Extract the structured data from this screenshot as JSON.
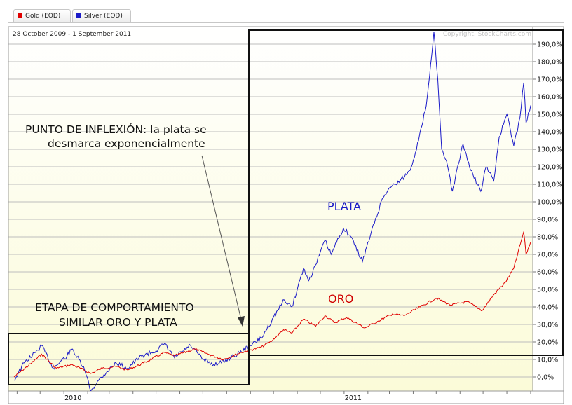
{
  "legend": [
    {
      "label": "Gold (EOD)",
      "color": "#e00000"
    },
    {
      "label": "Silver (EOD)",
      "color": "#1a1ac8"
    }
  ],
  "chart_data": {
    "type": "line",
    "date_range": "28 October 2009 - 1 September 2011",
    "copyright": "Copyright, StockCharts.com",
    "y_unit": "% change",
    "ylim": [
      -8,
      200
    ],
    "y_ticks": [
      "0,0%",
      "10,0%",
      "20,0%",
      "30,0%",
      "40,0%",
      "50,0%",
      "60,0%",
      "70,0%",
      "80,0%",
      "90,0%",
      "100,0%",
      "110,0%",
      "120,0%",
      "130,0%",
      "140,0%",
      "150,0%",
      "160,0%",
      "170,0%",
      "180,0%",
      "190,0%"
    ],
    "x_range": [
      "2009-10-28",
      "2011-09-01"
    ],
    "x_tick_labels": [
      {
        "label": "2010",
        "date": "2010-01-01"
      },
      {
        "label": "2011",
        "date": "2011-01-01"
      }
    ],
    "grid": true,
    "series": [
      {
        "name": "Gold (EOD)",
        "color": "#e00000",
        "points": [
          [
            "2009-10-28",
            0
          ],
          [
            "2009-11-20",
            8
          ],
          [
            "2009-12-03",
            13
          ],
          [
            "2009-12-22",
            5
          ],
          [
            "2010-01-12",
            7
          ],
          [
            "2010-02-05",
            2
          ],
          [
            "2010-02-20",
            5
          ],
          [
            "2010-03-10",
            6
          ],
          [
            "2010-03-25",
            4
          ],
          [
            "2010-04-15",
            8
          ],
          [
            "2010-05-12",
            14
          ],
          [
            "2010-05-25",
            12
          ],
          [
            "2010-06-20",
            16
          ],
          [
            "2010-07-08",
            13
          ],
          [
            "2010-07-28",
            10
          ],
          [
            "2010-08-20",
            14
          ],
          [
            "2010-09-15",
            17
          ],
          [
            "2010-09-30",
            21
          ],
          [
            "2010-10-14",
            27
          ],
          [
            "2010-10-25",
            25
          ],
          [
            "2010-11-09",
            33
          ],
          [
            "2010-11-25",
            29
          ],
          [
            "2010-12-07",
            35
          ],
          [
            "2010-12-20",
            31
          ],
          [
            "2011-01-04",
            34
          ],
          [
            "2011-01-28",
            28
          ],
          [
            "2011-02-15",
            32
          ],
          [
            "2011-03-05",
            36
          ],
          [
            "2011-03-20",
            35
          ],
          [
            "2011-04-10",
            40
          ],
          [
            "2011-05-01",
            45
          ],
          [
            "2011-05-20",
            41
          ],
          [
            "2011-06-10",
            43
          ],
          [
            "2011-06-30",
            38
          ],
          [
            "2011-07-15",
            47
          ],
          [
            "2011-07-30",
            54
          ],
          [
            "2011-08-10",
            62
          ],
          [
            "2011-08-23",
            83
          ],
          [
            "2011-08-26",
            70
          ],
          [
            "2011-09-01",
            77
          ]
        ]
      },
      {
        "name": "Silver (EOD)",
        "color": "#1a1ac8",
        "points": [
          [
            "2009-10-28",
            -2
          ],
          [
            "2009-11-10",
            8
          ],
          [
            "2009-11-25",
            14
          ],
          [
            "2009-12-03",
            18
          ],
          [
            "2009-12-18",
            5
          ],
          [
            "2010-01-05",
            12
          ],
          [
            "2010-01-12",
            16
          ],
          [
            "2010-01-28",
            4
          ],
          [
            "2010-02-05",
            -8
          ],
          [
            "2010-02-15",
            -2
          ],
          [
            "2010-02-26",
            3
          ],
          [
            "2010-03-10",
            8
          ],
          [
            "2010-03-25",
            5
          ],
          [
            "2010-04-12",
            12
          ],
          [
            "2010-05-01",
            15
          ],
          [
            "2010-05-12",
            19
          ],
          [
            "2010-05-25",
            11
          ],
          [
            "2010-06-15",
            18
          ],
          [
            "2010-07-01",
            10
          ],
          [
            "2010-07-15",
            7
          ],
          [
            "2010-07-28",
            9
          ],
          [
            "2010-08-15",
            13
          ],
          [
            "2010-09-01",
            18
          ],
          [
            "2010-09-15",
            22
          ],
          [
            "2010-10-01",
            34
          ],
          [
            "2010-10-15",
            44
          ],
          [
            "2010-10-25",
            40
          ],
          [
            "2010-11-09",
            62
          ],
          [
            "2010-11-16",
            55
          ],
          [
            "2010-11-25",
            64
          ],
          [
            "2010-12-07",
            78
          ],
          [
            "2010-12-15",
            70
          ],
          [
            "2010-12-31",
            85
          ],
          [
            "2011-01-10",
            80
          ],
          [
            "2011-01-25",
            66
          ],
          [
            "2011-02-05",
            82
          ],
          [
            "2011-02-20",
            102
          ],
          [
            "2011-03-01",
            108
          ],
          [
            "2011-03-15",
            112
          ],
          [
            "2011-03-28",
            118
          ],
          [
            "2011-04-08",
            135
          ],
          [
            "2011-04-18",
            155
          ],
          [
            "2011-04-28",
            197
          ],
          [
            "2011-05-03",
            170
          ],
          [
            "2011-05-08",
            130
          ],
          [
            "2011-05-16",
            120
          ],
          [
            "2011-05-22",
            106
          ],
          [
            "2011-06-05",
            133
          ],
          [
            "2011-06-15",
            118
          ],
          [
            "2011-06-28",
            106
          ],
          [
            "2011-07-05",
            120
          ],
          [
            "2011-07-15",
            112
          ],
          [
            "2011-07-22",
            137
          ],
          [
            "2011-08-01",
            150
          ],
          [
            "2011-08-10",
            132
          ],
          [
            "2011-08-18",
            148
          ],
          [
            "2011-08-23",
            168
          ],
          [
            "2011-08-26",
            145
          ],
          [
            "2011-09-01",
            155
          ]
        ]
      }
    ]
  },
  "annotations": {
    "inflection_line1": "PUNTO DE INFLEXIÓN: la plata se",
    "inflection_line2": "desmarca exponencialmente",
    "stage_line1": "ETAPA DE COMPORTAMIENTO",
    "stage_line2": "SIMILAR ORO Y PLATA",
    "silver_label": "PLATA",
    "gold_label": "ORO"
  }
}
